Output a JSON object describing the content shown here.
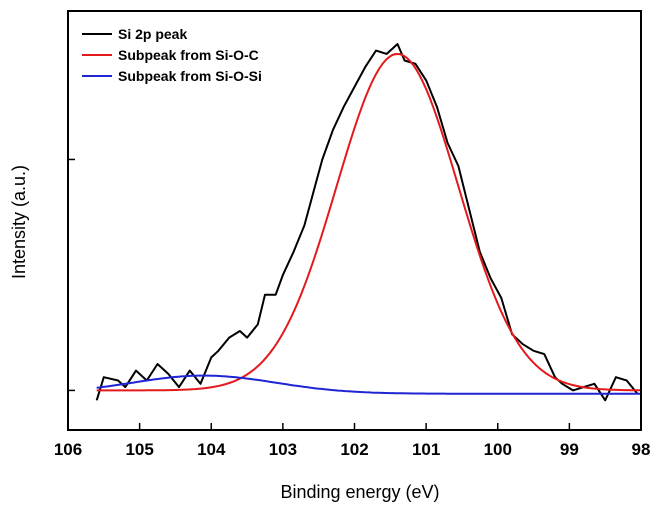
{
  "chart_data": {
    "type": "line",
    "xlabel": "Binding energy (eV)",
    "ylabel": "Intensity (a.u.)",
    "xlim": [
      106,
      98
    ],
    "ylim": [
      -0.12,
      1.15
    ],
    "x_reversed": true,
    "x_ticks": [
      106,
      105,
      104,
      103,
      102,
      101,
      100,
      99,
      98
    ],
    "x_tick_labels": [
      "106",
      "105",
      "104",
      "103",
      "102",
      "101",
      "100",
      "99",
      "98"
    ],
    "y_ticks": [
      0,
      0.7
    ],
    "grid": false,
    "legend_position": "top-left",
    "series": [
      {
        "name": "Si 2p peak",
        "color": "#000000",
        "x": [
          105.6,
          105.5,
          105.3,
          105.2,
          105.05,
          104.9,
          104.75,
          104.6,
          104.45,
          104.3,
          104.15,
          104.0,
          103.9,
          103.75,
          103.6,
          103.5,
          103.35,
          103.25,
          103.1,
          103.0,
          102.85,
          102.7,
          102.55,
          102.45,
          102.3,
          102.15,
          102.0,
          101.85,
          101.7,
          101.55,
          101.4,
          101.3,
          101.15,
          101.0,
          100.85,
          100.7,
          100.55,
          100.4,
          100.25,
          100.1,
          99.95,
          99.8,
          99.65,
          99.5,
          99.35,
          99.2,
          99.1,
          98.95,
          98.8,
          98.65,
          98.5,
          98.35,
          98.2,
          98.05
        ],
        "y": [
          -0.03,
          0.04,
          0.03,
          0.01,
          0.06,
          0.03,
          0.08,
          0.05,
          0.01,
          0.06,
          0.02,
          0.1,
          0.12,
          0.16,
          0.18,
          0.16,
          0.2,
          0.29,
          0.29,
          0.35,
          0.42,
          0.5,
          0.62,
          0.7,
          0.79,
          0.86,
          0.92,
          0.98,
          1.03,
          1.02,
          1.05,
          1.0,
          0.99,
          0.94,
          0.86,
          0.75,
          0.68,
          0.55,
          0.42,
          0.34,
          0.28,
          0.17,
          0.14,
          0.12,
          0.11,
          0.04,
          0.02,
          0.0,
          0.01,
          0.02,
          -0.03,
          0.04,
          0.03,
          -0.01
        ]
      },
      {
        "name": "Subpeak from Si-O-C",
        "color": "#e3191c",
        "center": 101.4,
        "amplitude": 1.02,
        "sigma": 0.85,
        "x_range": [
          105.6,
          98.0
        ]
      },
      {
        "name": "Subpeak from Si-O-Si",
        "color": "#1f24d4",
        "center": 104.1,
        "amplitude": 0.055,
        "sigma": 1.0,
        "baseline": -0.01,
        "x_range": [
          105.6,
          98.0
        ]
      }
    ]
  }
}
